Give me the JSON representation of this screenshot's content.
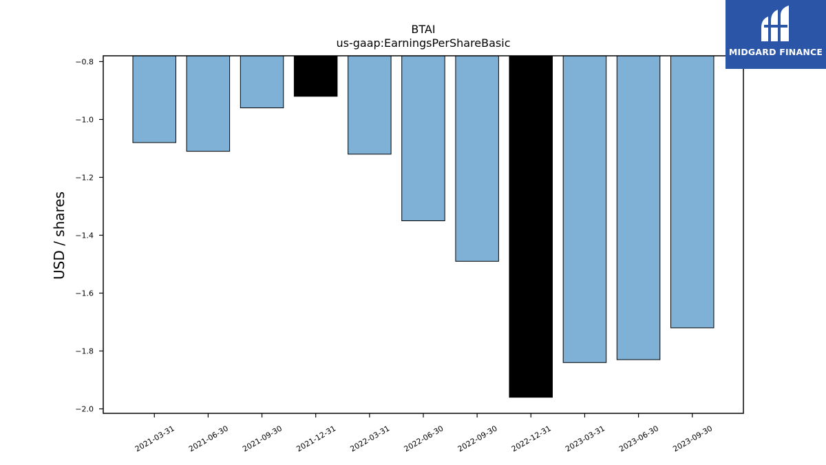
{
  "chart_data": {
    "type": "bar",
    "title": "BTAI",
    "subtitle": "us-gaap:EarningsPerShareBasic",
    "ylabel": "USD / shares",
    "xlabel": "",
    "ylim": [
      -2.0154,
      -0.78
    ],
    "yticks": [
      -0.8,
      -1.0,
      -1.2,
      -1.4,
      -1.6,
      -1.8,
      -2.0
    ],
    "ytick_labels": [
      "−0.8",
      "−1.0",
      "−1.2",
      "−1.4",
      "−1.6",
      "−1.8",
      "−2.0"
    ],
    "categories": [
      "2021-03-31",
      "2021-06-30",
      "2021-09-30",
      "2021-12-31",
      "2022-03-31",
      "2022-06-30",
      "2022-09-30",
      "2022-12-31",
      "2023-03-31",
      "2023-06-30",
      "2023-09-30"
    ],
    "values": [
      -1.08,
      -1.11,
      -0.96,
      -0.92,
      -1.12,
      -1.35,
      -1.49,
      -1.96,
      -1.84,
      -1.83,
      -1.72
    ],
    "highlight": [
      false,
      false,
      false,
      true,
      false,
      false,
      false,
      true,
      false,
      false,
      false
    ],
    "colors": {
      "bar": "#7fb0d5",
      "highlight": "#000000",
      "edge": "#000000"
    },
    "grid": false,
    "legend": "none"
  },
  "logo": {
    "text": "MIDGARD FINANCE",
    "background": "#2b56a8",
    "icon": "midgard-logo-icon"
  }
}
